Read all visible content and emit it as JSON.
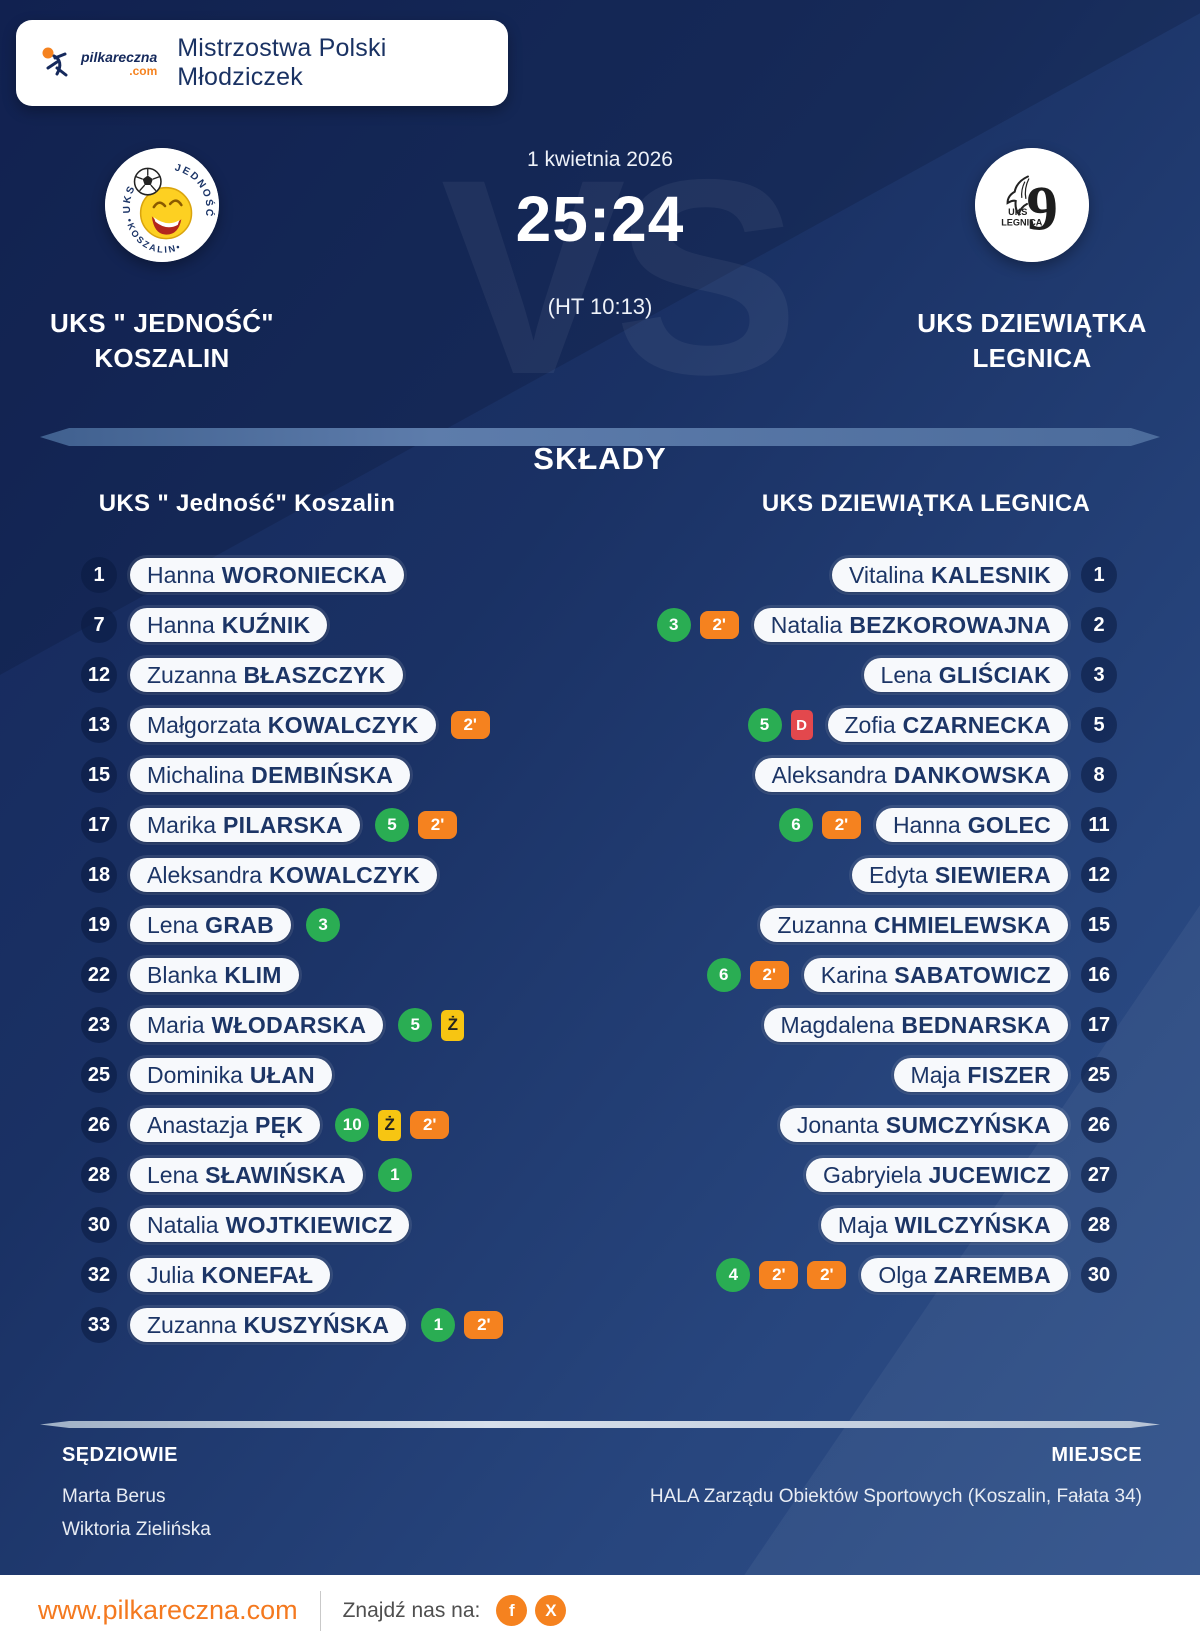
{
  "header": {
    "title": "Mistrzostwa Polski Młodziczek",
    "logo_text": "pilkareczna",
    "logo_tld": ".com"
  },
  "match": {
    "date": "1 kwietnia 2026",
    "score": "25:24",
    "halftime": "(HT 10:13)",
    "vs_watermark": "VS",
    "home": {
      "name_line1": "UKS \" JEDNOŚĆ\"",
      "name_line2": "KOSZALIN"
    },
    "away": {
      "name_line1": "UKS DZIEWIĄTKA",
      "name_line2": "LEGNICA"
    }
  },
  "lineups": {
    "title": "SKŁADY",
    "home": {
      "header": "UKS \" Jedność\" Koszalin",
      "players": [
        {
          "number": "1",
          "first": "Hanna",
          "last": "WORONIECKA",
          "badges": []
        },
        {
          "number": "7",
          "first": "Hanna",
          "last": "KUŹNIK",
          "badges": []
        },
        {
          "number": "12",
          "first": "Zuzanna",
          "last": "BŁASZCZYK",
          "badges": []
        },
        {
          "number": "13",
          "first": "Małgorzata",
          "last": "KOWALCZYK",
          "badges": [
            {
              "type": "two-minute",
              "label": "2'"
            }
          ]
        },
        {
          "number": "15",
          "first": "Michalina",
          "last": "DEMBIŃSKA",
          "badges": []
        },
        {
          "number": "17",
          "first": "Marika",
          "last": "PILARSKA",
          "badges": [
            {
              "type": "goals",
              "label": "5"
            },
            {
              "type": "two-minute",
              "label": "2'"
            }
          ]
        },
        {
          "number": "18",
          "first": "Aleksandra",
          "last": "KOWALCZYK",
          "badges": []
        },
        {
          "number": "19",
          "first": "Lena",
          "last": "GRAB",
          "badges": [
            {
              "type": "goals",
              "label": "3"
            }
          ]
        },
        {
          "number": "22",
          "first": "Blanka",
          "last": "KLIM",
          "badges": []
        },
        {
          "number": "23",
          "first": "Maria",
          "last": "WŁODARSKA",
          "badges": [
            {
              "type": "goals",
              "label": "5"
            },
            {
              "type": "yellow-card",
              "label": "Ż"
            }
          ]
        },
        {
          "number": "25",
          "first": "Dominika",
          "last": "UŁAN",
          "badges": []
        },
        {
          "number": "26",
          "first": "Anastazja",
          "last": "PĘK",
          "badges": [
            {
              "type": "goals",
              "label": "10"
            },
            {
              "type": "yellow-card",
              "label": "Ż"
            },
            {
              "type": "two-minute",
              "label": "2'"
            }
          ]
        },
        {
          "number": "28",
          "first": "Lena",
          "last": "SŁAWIŃSKA",
          "badges": [
            {
              "type": "goals",
              "label": "1"
            }
          ]
        },
        {
          "number": "30",
          "first": "Natalia",
          "last": "WOJTKIEWICZ",
          "badges": []
        },
        {
          "number": "32",
          "first": "Julia",
          "last": "KONEFAŁ",
          "badges": []
        },
        {
          "number": "33",
          "first": "Zuzanna",
          "last": "KUSZYŃSKA",
          "badges": [
            {
              "type": "goals",
              "label": "1"
            },
            {
              "type": "two-minute",
              "label": "2'"
            }
          ]
        }
      ]
    },
    "away": {
      "header": "UKS DZIEWIĄTKA LEGNICA",
      "players": [
        {
          "number": "1",
          "first": "Vitalina",
          "last": "KALESNIK",
          "badges": []
        },
        {
          "number": "2",
          "first": "Natalia",
          "last": "BEZKOROWAJNA",
          "badges": [
            {
              "type": "goals",
              "label": "3"
            },
            {
              "type": "two-minute",
              "label": "2'"
            }
          ]
        },
        {
          "number": "3",
          "first": "Lena",
          "last": "GLIŚCIAK",
          "badges": []
        },
        {
          "number": "5",
          "first": "Zofia",
          "last": "CZARNECKA",
          "badges": [
            {
              "type": "goals",
              "label": "5"
            },
            {
              "type": "red-card",
              "label": "D"
            }
          ]
        },
        {
          "number": "8",
          "first": "Aleksandra",
          "last": "DANKOWSKA",
          "badges": []
        },
        {
          "number": "11",
          "first": "Hanna",
          "last": "GOLEC",
          "badges": [
            {
              "type": "goals",
              "label": "6"
            },
            {
              "type": "two-minute",
              "label": "2'"
            }
          ]
        },
        {
          "number": "12",
          "first": "Edyta",
          "last": "SIEWIERA",
          "badges": []
        },
        {
          "number": "15",
          "first": "Zuzanna",
          "last": "CHMIELEWSKA",
          "badges": []
        },
        {
          "number": "16",
          "first": "Karina",
          "last": "SABATOWICZ",
          "badges": [
            {
              "type": "goals",
              "label": "6"
            },
            {
              "type": "two-minute",
              "label": "2'"
            }
          ]
        },
        {
          "number": "17",
          "first": "Magdalena",
          "last": "BEDNARSKA",
          "badges": []
        },
        {
          "number": "25",
          "first": "Maja",
          "last": "FISZER",
          "badges": []
        },
        {
          "number": "26",
          "first": "Jonanta",
          "last": "SUMCZYŃSKA",
          "badges": []
        },
        {
          "number": "27",
          "first": "Gabryiela",
          "last": "JUCEWICZ",
          "badges": []
        },
        {
          "number": "28",
          "first": "Maja",
          "last": "WILCZYŃSKA",
          "badges": []
        },
        {
          "number": "30",
          "first": "Olga",
          "last": "ZAREMBA",
          "badges": [
            {
              "type": "goals",
              "label": "4"
            },
            {
              "type": "two-minute",
              "label": "2'"
            },
            {
              "type": "two-minute",
              "label": "2'"
            }
          ]
        }
      ]
    }
  },
  "footer_info": {
    "referees_label": "SĘDZIOWIE",
    "referees": [
      "Marta Berus",
      "Wiktoria Zielińska"
    ],
    "venue_label": "MIEJSCE",
    "venue": "HALA Zarządu Obiektów Sportowych (Koszalin, Fałata 34)"
  },
  "site_footer": {
    "url": "www.pilkareczna.com",
    "find_us": "Znajdź nas na:",
    "socials": [
      {
        "name": "facebook",
        "glyph": "f"
      },
      {
        "name": "x",
        "glyph": "X"
      }
    ]
  },
  "colors": {
    "background_navy": "#1a3164",
    "text_navy": "#1c3566",
    "accent_orange": "#f5821f",
    "goals_green": "#2aad53",
    "yellow_card": "#f7c512",
    "red_card": "#e3484d"
  }
}
